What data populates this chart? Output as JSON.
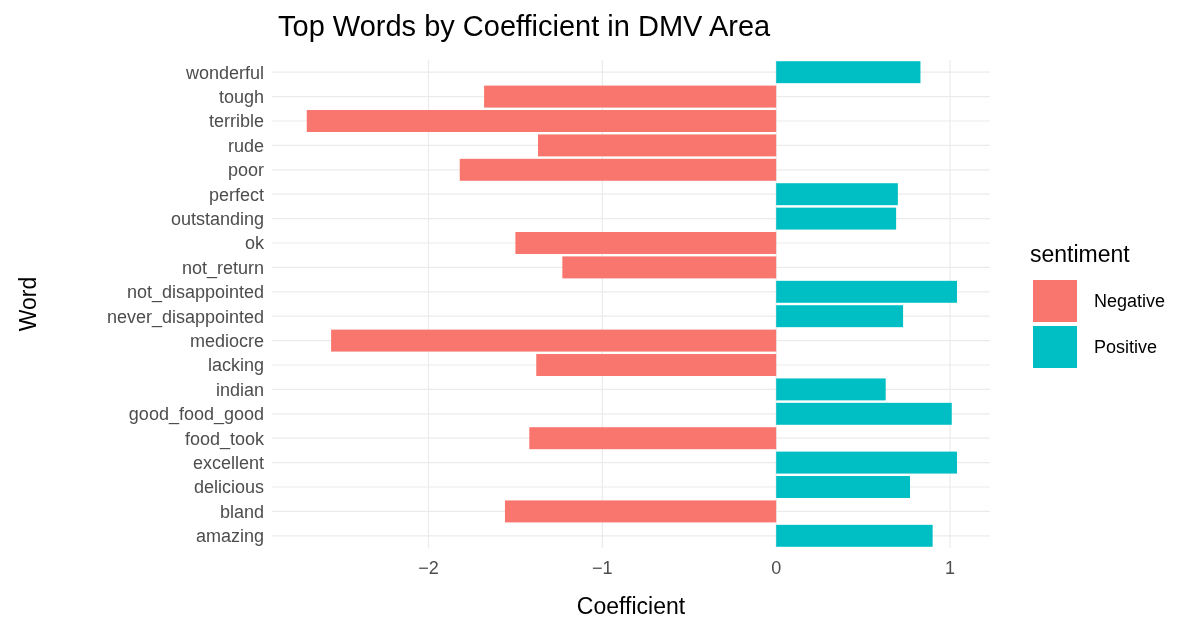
{
  "chart_data": {
    "type": "bar",
    "orientation": "horizontal",
    "stacked": true,
    "title": "Top Words by Coefficient in DMV Area",
    "xlabel": "Coefficient",
    "ylabel": "Word",
    "legend_title": "sentiment",
    "legend": "right",
    "grid": true,
    "categories": [
      "wonderful",
      "tough",
      "terrible",
      "rude",
      "poor",
      "perfect",
      "outstanding",
      "ok",
      "not_return",
      "not_disappointed",
      "never_disappointed",
      "mediocre",
      "lacking",
      "indian",
      "good_food_good",
      "food_took",
      "excellent",
      "delicious",
      "bland",
      "amazing"
    ],
    "series": [
      {
        "name": "Negative",
        "color": "#f8766d",
        "values": [
          null,
          -1.68,
          -2.7,
          -1.37,
          -1.82,
          null,
          null,
          -1.5,
          -1.23,
          null,
          null,
          -2.56,
          -1.38,
          null,
          null,
          -1.42,
          null,
          null,
          -1.56,
          null
        ]
      },
      {
        "name": "Positive",
        "color": "#00bfc4",
        "values": [
          0.83,
          null,
          null,
          null,
          null,
          0.7,
          0.69,
          null,
          null,
          1.04,
          0.73,
          null,
          null,
          0.63,
          1.01,
          null,
          1.04,
          0.77,
          null,
          0.9
        ]
      }
    ],
    "xlim": [
      -2.9,
      1.23
    ],
    "xticks": [
      -2,
      -1,
      0,
      1
    ]
  }
}
